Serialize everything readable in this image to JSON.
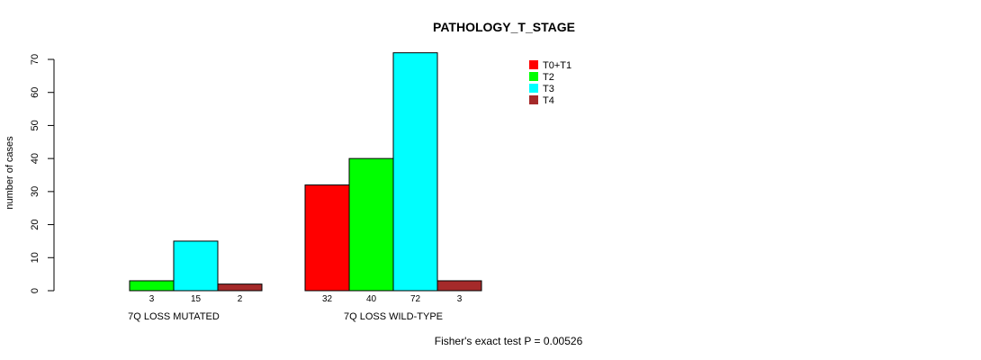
{
  "chart_data": {
    "type": "bar",
    "title": "PATHOLOGY_T_STAGE",
    "ylabel": "number of cases",
    "xlabel": "",
    "ylim": [
      0,
      70
    ],
    "yticks": [
      0,
      10,
      20,
      30,
      40,
      50,
      60,
      70
    ],
    "groups": [
      "7Q LOSS MUTATED",
      "7Q LOSS WILD-TYPE"
    ],
    "series": [
      {
        "name": "T0+T1",
        "color": "#ff0000",
        "values": [
          0,
          32
        ],
        "labels": [
          "",
          "32"
        ]
      },
      {
        "name": "T2",
        "color": "#00ff00",
        "values": [
          3,
          40
        ],
        "labels": [
          "3",
          "40"
        ]
      },
      {
        "name": "T3",
        "color": "#00ffff",
        "values": [
          15,
          72
        ],
        "labels": [
          "15",
          "72"
        ]
      },
      {
        "name": "T4",
        "color": "#a52a2a",
        "values": [
          2,
          3
        ],
        "labels": [
          "2",
          "3"
        ]
      }
    ],
    "legend_position": "top-right",
    "footer": "Fisher's exact test P = 0.00526"
  }
}
